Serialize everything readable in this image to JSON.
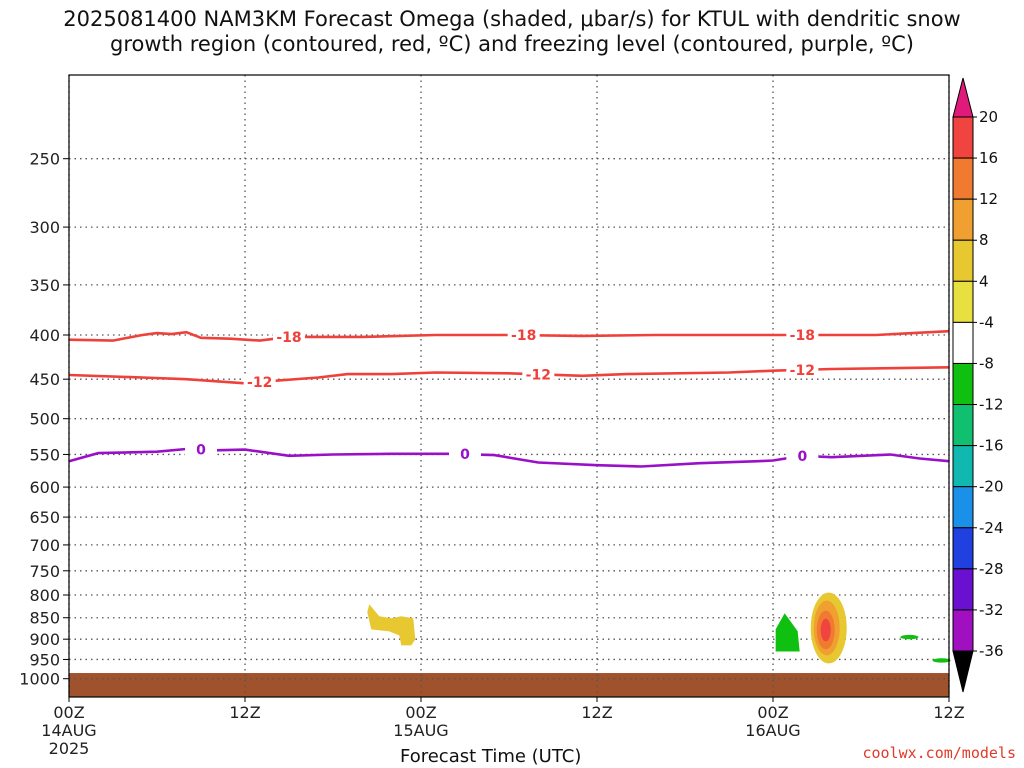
{
  "title": {
    "line1": "2025081400 NAM3KM Forecast Omega (shaded, μbar/s) for KTUL with dendritic snow",
    "line2": "growth region (contoured, red, ºC) and freezing level (contoured, purple, ºC)"
  },
  "credit": "coolwx.com/models",
  "colors": {
    "temp_contour": "#f0403a",
    "freezing_contour": "#9a10c8",
    "ground": "#a0522d",
    "grid": "#555555"
  },
  "chart_data": {
    "type": "contour-time-height",
    "xlabel": "Forecast Time (UTC)",
    "ylabel": "",
    "x_unit": "forecast hour",
    "xlim": [
      0,
      60
    ],
    "x_ticks": [
      {
        "hour": 0,
        "label": "00Z",
        "date": "14AUG",
        "year": "2025"
      },
      {
        "hour": 12,
        "label": "12Z",
        "date": "",
        "year": ""
      },
      {
        "hour": 24,
        "label": "00Z",
        "date": "15AUG",
        "year": ""
      },
      {
        "hour": 36,
        "label": "12Z",
        "date": "",
        "year": ""
      },
      {
        "hour": 48,
        "label": "00Z",
        "date": "16AUG",
        "year": ""
      },
      {
        "hour": 60,
        "label": "12Z",
        "date": "",
        "year": ""
      }
    ],
    "y_unit": "hPa",
    "ylim": [
      1050,
      200
    ],
    "y_ticks": [
      250,
      300,
      350,
      400,
      450,
      500,
      550,
      600,
      650,
      700,
      750,
      800,
      850,
      900,
      950,
      1000
    ],
    "grid": true,
    "contours": [
      {
        "name": "dendritic -18",
        "label": "-18",
        "color_key": "temp_contour",
        "label_hours": [
          15,
          31,
          50
        ],
        "points": [
          [
            0,
            405
          ],
          [
            3,
            406
          ],
          [
            5,
            400
          ],
          [
            6,
            398
          ],
          [
            7,
            399
          ],
          [
            8,
            397
          ],
          [
            9,
            403
          ],
          [
            11,
            404
          ],
          [
            13,
            406
          ],
          [
            15,
            402
          ],
          [
            20,
            402
          ],
          [
            25,
            400
          ],
          [
            30,
            400
          ],
          [
            35,
            401
          ],
          [
            40,
            400
          ],
          [
            45,
            400
          ],
          [
            50,
            400
          ],
          [
            55,
            400
          ],
          [
            60,
            396
          ]
        ]
      },
      {
        "name": "dendritic -12",
        "label": "-12",
        "color_key": "temp_contour",
        "label_hours": [
          13,
          32,
          50
        ],
        "points": [
          [
            0,
            445
          ],
          [
            5,
            448
          ],
          [
            8,
            450
          ],
          [
            12,
            455
          ],
          [
            14,
            452
          ],
          [
            17,
            448
          ],
          [
            19,
            444
          ],
          [
            22,
            444
          ],
          [
            25,
            442
          ],
          [
            30,
            443
          ],
          [
            35,
            446
          ],
          [
            38,
            444
          ],
          [
            45,
            442
          ],
          [
            48,
            440
          ],
          [
            52,
            438
          ],
          [
            56,
            437
          ],
          [
            60,
            436
          ]
        ]
      },
      {
        "name": "freezing level 0",
        "label": "0",
        "color_key": "freezing_contour",
        "label_hours": [
          9,
          27,
          50
        ],
        "points": [
          [
            0,
            560
          ],
          [
            2,
            548
          ],
          [
            6,
            546
          ],
          [
            8,
            542
          ],
          [
            10,
            544
          ],
          [
            12,
            543
          ],
          [
            15,
            552
          ],
          [
            18,
            550
          ],
          [
            22,
            549
          ],
          [
            26,
            549
          ],
          [
            29,
            551
          ],
          [
            32,
            562
          ],
          [
            36,
            566
          ],
          [
            39,
            568
          ],
          [
            43,
            563
          ],
          [
            47,
            560
          ],
          [
            48,
            559
          ],
          [
            50,
            552
          ],
          [
            52,
            554
          ],
          [
            56,
            550
          ],
          [
            58,
            556
          ],
          [
            60,
            560
          ]
        ]
      }
    ],
    "omega_regions": [
      {
        "value_range": "4 to 8",
        "center_hour": 23.2,
        "top_hPa": 820,
        "bottom_hPa": 915
      },
      {
        "value_range": "-4 to -8",
        "center_hour": 49.0,
        "top_hPa": 840,
        "bottom_hPa": 930
      },
      {
        "value_range": "4 to 20",
        "center_hour": 51.8,
        "top_hPa": 795,
        "bottom_hPa": 960
      },
      {
        "value_range": "-4 to -8",
        "center_hour": 57.3,
        "top_hPa": 890,
        "bottom_hPa": 900
      },
      {
        "value_range": "-4 to -8",
        "center_hour": 59.5,
        "top_hPa": 950,
        "bottom_hPa": 955
      }
    ],
    "ground_pressure_hPa": 985,
    "colorbar": {
      "unit": "μbar/s",
      "labels": [
        "20",
        "16",
        "12",
        "8",
        "4",
        "-4",
        "-8",
        "-12",
        "-16",
        "-20",
        "-24",
        "-28",
        "-32",
        "-36"
      ],
      "bands": [
        {
          "from": 20,
          "color": "#e01a7a"
        },
        {
          "from": 16,
          "color": "#f04440"
        },
        {
          "from": 12,
          "color": "#ef7a30"
        },
        {
          "from": 8,
          "color": "#f0a030"
        },
        {
          "from": 4,
          "color": "#e8c830"
        },
        {
          "from": 0,
          "color": "#e8e040"
        },
        {
          "from": -4,
          "color": "#ffffff"
        },
        {
          "from": -8,
          "color": "#10c010"
        },
        {
          "from": -12,
          "color": "#10c070"
        },
        {
          "from": -16,
          "color": "#10b8b0"
        },
        {
          "from": -20,
          "color": "#1a90e8"
        },
        {
          "from": -24,
          "color": "#2040e0"
        },
        {
          "from": -28,
          "color": "#6a10d0"
        },
        {
          "from": -32,
          "color": "#a010c0"
        },
        {
          "from": -36,
          "color": "#a0a0a0"
        }
      ]
    }
  }
}
